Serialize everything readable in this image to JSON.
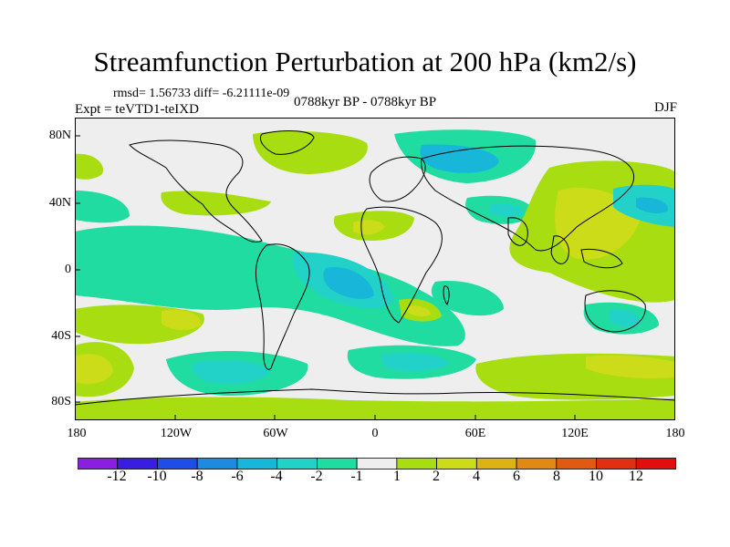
{
  "title": "Streamfunction Perturbation at 200 hPa (km2/s)",
  "stats": "rmsd= 1.56733  diff= -6.21111e-09",
  "expt": "Expt = teVTD1-teIXD",
  "period": "0788kyr BP - 0788kyr BP",
  "season": "DJF",
  "y_ticks": [
    "80N",
    "40N",
    "0",
    "40S",
    "80S"
  ],
  "x_ticks": [
    "180",
    "120W",
    "60W",
    "0",
    "60E",
    "120E",
    "180"
  ],
  "colorbar": {
    "labels": [
      "-12",
      "-10",
      "-8",
      "-6",
      "-4",
      "-2",
      "-1",
      "1",
      "2",
      "4",
      "6",
      "8",
      "10",
      "12"
    ],
    "colors": [
      "#8a1fe0",
      "#3a1ee0",
      "#1f4ee6",
      "#1e8ae0",
      "#18b6d8",
      "#22d2c8",
      "#20dca0",
      "#eeeeee",
      "#a8dd12",
      "#cddc18",
      "#dcb214",
      "#e08a14",
      "#e05a14",
      "#e03012",
      "#e00e0e"
    ]
  },
  "legend": {
    "neg_light": "#20dca0",
    "neg_mid": "#22d2c8",
    "neg_strong": "#18b6d8",
    "neutral": "#eeeeee",
    "pos_light": "#a8dd12",
    "pos_mid": "#cddc18",
    "pos_strong": "#dcb214"
  }
}
